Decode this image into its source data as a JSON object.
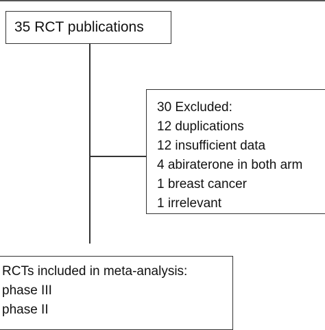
{
  "publications": {
    "label": "35 RCT publications"
  },
  "excluded": {
    "title": "30 Excluded:",
    "items": [
      "12 duplications",
      "12 insufficient data",
      "4 abiraterone in both arm",
      "1 breast cancer",
      "1 irrelevant"
    ]
  },
  "included": {
    "title": "RCTs included in meta-analysis:",
    "items": [
      "phase III",
      "phase II"
    ]
  }
}
